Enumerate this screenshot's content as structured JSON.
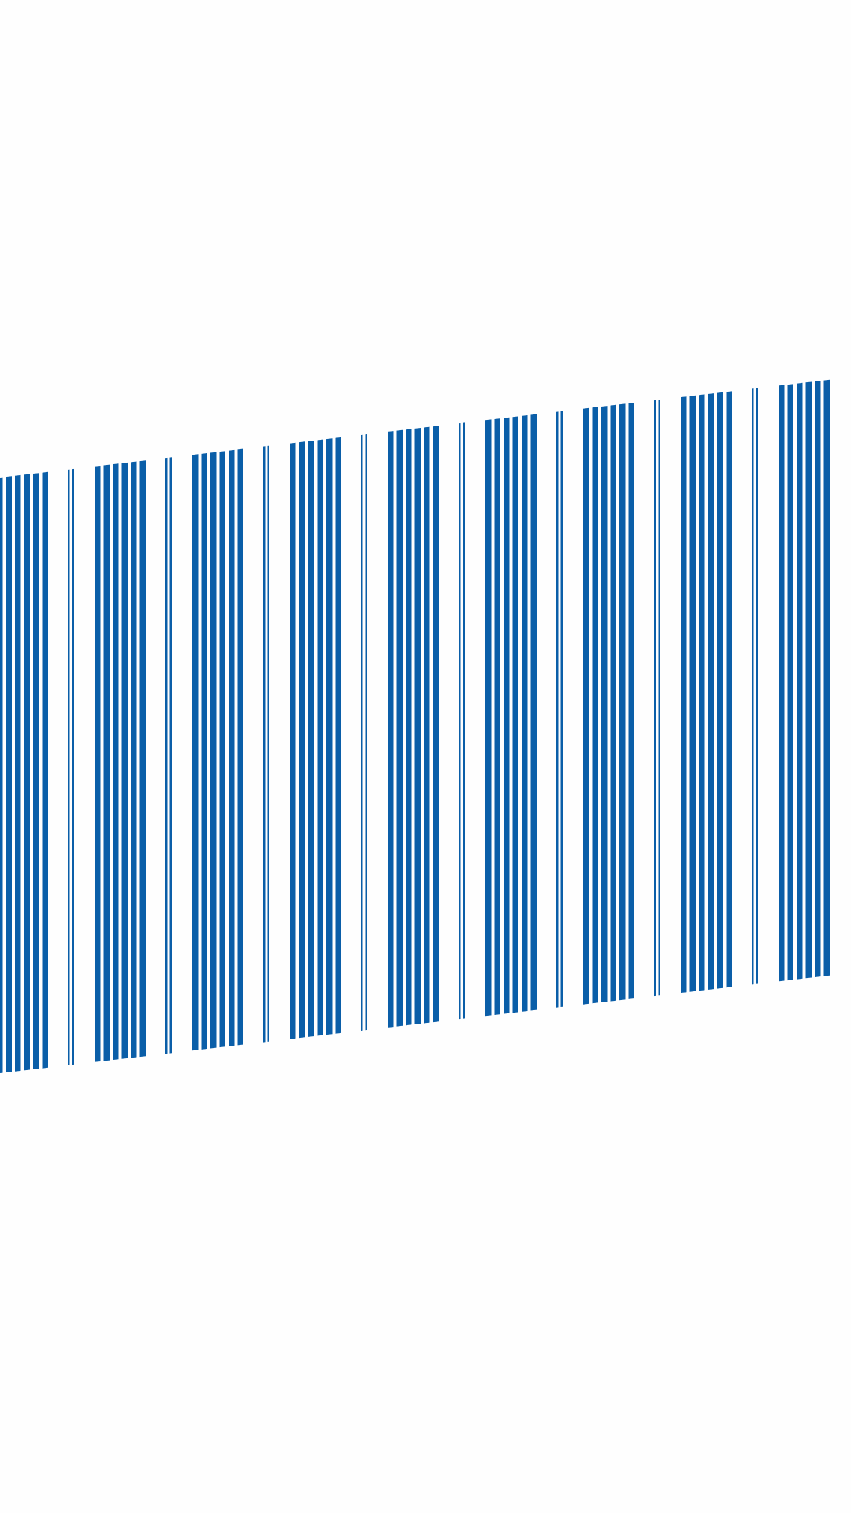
{
  "pattern": {
    "colors": {
      "bar": "#0a5ea8",
      "background": "#fefefe"
    },
    "description_hidden": "",
    "group_count": 9,
    "groups": [
      {
        "kind": "thick-cluster",
        "bars": 6
      },
      {
        "kind": "thin-pair",
        "bars": 2
      },
      {
        "kind": "thick-cluster",
        "bars": 6
      },
      {
        "kind": "thin-pair",
        "bars": 2
      },
      {
        "kind": "thick-cluster",
        "bars": 6
      },
      {
        "kind": "thin-pair",
        "bars": 2
      },
      {
        "kind": "thick-cluster",
        "bars": 6
      },
      {
        "kind": "thin-pair",
        "bars": 2
      },
      {
        "kind": "thick-cluster",
        "bars": 6
      },
      {
        "kind": "thin-pair",
        "bars": 2
      },
      {
        "kind": "thick-cluster",
        "bars": 6
      },
      {
        "kind": "thin-pair",
        "bars": 2
      },
      {
        "kind": "thick-cluster",
        "bars": 6
      },
      {
        "kind": "thin-pair",
        "bars": 2
      },
      {
        "kind": "thick-cluster",
        "bars": 6
      },
      {
        "kind": "thin-pair",
        "bars": 2
      },
      {
        "kind": "thick-cluster",
        "bars": 6
      }
    ]
  }
}
